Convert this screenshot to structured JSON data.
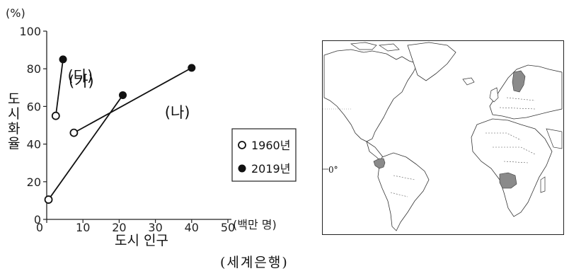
{
  "chart_data": {
    "type": "line",
    "xlabel": "도시 인구",
    "xunit": "(백만 명)",
    "ylabel": "도시화율",
    "yunit": "(%)",
    "xlim": [
      0,
      50
    ],
    "ylim": [
      0,
      100
    ],
    "xticks": [
      0,
      10,
      20,
      30,
      40,
      50
    ],
    "yticks": [
      0,
      20,
      40,
      60,
      80,
      100
    ],
    "xtick_labels": [
      "0",
      "10",
      "20",
      "30",
      "40",
      "50"
    ],
    "ytick_labels": [
      "0",
      "20",
      "40",
      "60",
      "80",
      "100"
    ],
    "series": [
      {
        "name": "(가)",
        "points": [
          {
            "x": 2.5,
            "y": 55
          },
          {
            "x": 4.5,
            "y": 85
          }
        ]
      },
      {
        "name": "(나)",
        "points": [
          {
            "x": 7.5,
            "y": 46
          },
          {
            "x": 40,
            "y": 80.5
          }
        ]
      },
      {
        "name": "(다)",
        "points": [
          {
            "x": 0.5,
            "y": 10.5
          },
          {
            "x": 21,
            "y": 66
          }
        ]
      }
    ],
    "legend": [
      {
        "label": "1960년",
        "marker": "open-circle",
        "year": 1960
      },
      {
        "label": "2019년",
        "marker": "filled-circle",
        "year": 2019
      }
    ],
    "legend_position": "right"
  },
  "source": "(세계은행)",
  "map": {
    "equator_label": "0°",
    "highlight_color": "#8a8a8a"
  }
}
